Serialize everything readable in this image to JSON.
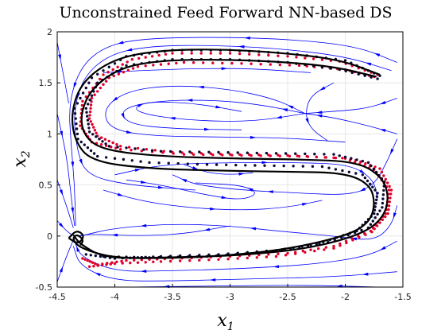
{
  "chart_data": {
    "type": "scatter",
    "title": "Unconstrained Feed Forward NN-based DS",
    "xlabel": {
      "base": "x",
      "sub": "1"
    },
    "ylabel": {
      "base": "x",
      "sub": "2"
    },
    "xlim": [
      -4.5,
      -1.5
    ],
    "ylim": [
      -0.5,
      2.0
    ],
    "xticks": [
      "-4.5",
      "-4",
      "-3.5",
      "-3",
      "-2.5",
      "-2",
      "-1.5"
    ],
    "yticks": [
      "-0.5",
      "0",
      "0.5",
      "1",
      "1.5",
      "2"
    ],
    "grid": true,
    "colors": {
      "streamlines": "#0000ff",
      "demonstrations": "#e0002a",
      "reproductions_dots": "#0a0a33",
      "reproductions_lines": "#000000"
    },
    "series": [
      {
        "style": "demonstration-dots",
        "points": [
          [
            -1.75,
            1.56
          ],
          [
            -2.0,
            1.63
          ],
          [
            -2.4,
            1.67
          ],
          [
            -2.9,
            1.69
          ],
          [
            -3.4,
            1.7
          ],
          [
            -3.8,
            1.66
          ],
          [
            -4.05,
            1.55
          ],
          [
            -4.2,
            1.35
          ],
          [
            -4.22,
            1.15
          ],
          [
            -4.15,
            0.98
          ],
          [
            -3.95,
            0.88
          ],
          [
            -3.5,
            0.82
          ],
          [
            -3.0,
            0.8
          ],
          [
            -2.5,
            0.79
          ],
          [
            -2.0,
            0.76
          ],
          [
            -1.75,
            0.65
          ],
          [
            -1.62,
            0.45
          ],
          [
            -1.65,
            0.22
          ],
          [
            -1.78,
            0.05
          ],
          [
            -2.1,
            -0.1
          ],
          [
            -2.5,
            -0.17
          ],
          [
            -3.0,
            -0.2
          ],
          [
            -3.5,
            -0.22
          ],
          [
            -3.9,
            -0.24
          ],
          [
            -4.15,
            -0.28
          ],
          [
            -4.28,
            -0.22
          ]
        ]
      },
      {
        "style": "demonstration-dots",
        "points": [
          [
            -1.72,
            1.58
          ],
          [
            -2.05,
            1.71
          ],
          [
            -2.5,
            1.76
          ],
          [
            -3.0,
            1.79
          ],
          [
            -3.5,
            1.79
          ],
          [
            -3.85,
            1.73
          ],
          [
            -4.1,
            1.58
          ],
          [
            -4.28,
            1.32
          ],
          [
            -4.3,
            1.08
          ],
          [
            -4.2,
            0.92
          ],
          [
            -3.95,
            0.85
          ],
          [
            -3.4,
            0.8
          ],
          [
            -2.9,
            0.79
          ],
          [
            -2.4,
            0.78
          ],
          [
            -1.95,
            0.76
          ],
          [
            -1.7,
            0.66
          ],
          [
            -1.6,
            0.45
          ],
          [
            -1.63,
            0.22
          ],
          [
            -1.77,
            0.04
          ],
          [
            -2.1,
            -0.12
          ],
          [
            -2.6,
            -0.2
          ],
          [
            -3.1,
            -0.23
          ],
          [
            -3.6,
            -0.25
          ],
          [
            -4.0,
            -0.27
          ],
          [
            -4.22,
            -0.3
          ]
        ]
      },
      {
        "style": "reproduction-dots",
        "points": [
          [
            -1.72,
            1.54
          ],
          [
            -2.05,
            1.63
          ],
          [
            -2.5,
            1.7
          ],
          [
            -3.0,
            1.73
          ],
          [
            -3.5,
            1.73
          ],
          [
            -3.9,
            1.67
          ],
          [
            -4.15,
            1.5
          ],
          [
            -4.25,
            1.25
          ],
          [
            -4.22,
            1.02
          ],
          [
            -4.05,
            0.88
          ],
          [
            -3.6,
            0.83
          ],
          [
            -3.1,
            0.82
          ],
          [
            -2.6,
            0.81
          ],
          [
            -2.1,
            0.8
          ],
          [
            -1.8,
            0.72
          ],
          [
            -1.66,
            0.53
          ],
          [
            -1.68,
            0.28
          ],
          [
            -1.8,
            0.08
          ],
          [
            -2.15,
            -0.06
          ],
          [
            -2.6,
            -0.14
          ],
          [
            -3.1,
            -0.18
          ],
          [
            -3.6,
            -0.2
          ],
          [
            -4.0,
            -0.22
          ],
          [
            -4.25,
            -0.18
          ]
        ]
      },
      {
        "style": "reproduction-dots",
        "points": [
          [
            -1.7,
            1.57
          ],
          [
            -2.0,
            1.72
          ],
          [
            -2.5,
            1.79
          ],
          [
            -3.0,
            1.82
          ],
          [
            -3.5,
            1.82
          ],
          [
            -3.9,
            1.76
          ],
          [
            -4.2,
            1.55
          ],
          [
            -4.35,
            1.25
          ],
          [
            -4.32,
            0.95
          ],
          [
            -4.15,
            0.78
          ],
          [
            -3.7,
            0.72
          ],
          [
            -3.2,
            0.7
          ],
          [
            -2.7,
            0.69
          ],
          [
            -2.2,
            0.68
          ],
          [
            -1.85,
            0.6
          ],
          [
            -1.72,
            0.42
          ],
          [
            -1.75,
            0.22
          ],
          [
            -1.9,
            0.05
          ],
          [
            -2.25,
            -0.08
          ],
          [
            -2.7,
            -0.16
          ],
          [
            -3.2,
            -0.2
          ],
          [
            -3.7,
            -0.21
          ],
          [
            -4.1,
            -0.2
          ]
        ]
      },
      {
        "style": "reproduction-line",
        "points": [
          [
            -1.73,
            1.56
          ],
          [
            -2.1,
            1.66
          ],
          [
            -2.6,
            1.71
          ],
          [
            -3.1,
            1.73
          ],
          [
            -3.6,
            1.72
          ],
          [
            -3.95,
            1.65
          ],
          [
            -4.2,
            1.45
          ],
          [
            -4.3,
            1.2
          ],
          [
            -4.27,
            0.98
          ],
          [
            -4.1,
            0.84
          ],
          [
            -3.6,
            0.78
          ],
          [
            -3.0,
            0.76
          ],
          [
            -2.4,
            0.75
          ],
          [
            -1.9,
            0.73
          ],
          [
            -1.68,
            0.58
          ],
          [
            -1.62,
            0.38
          ],
          [
            -1.67,
            0.18
          ],
          [
            -1.85,
            0.02
          ],
          [
            -2.3,
            -0.12
          ],
          [
            -2.9,
            -0.19
          ],
          [
            -3.5,
            -0.21
          ],
          [
            -4.0,
            -0.22
          ],
          [
            -4.3,
            -0.12
          ],
          [
            -4.37,
            -0.03
          ],
          [
            -4.33,
            0.02
          ],
          [
            -4.27,
            -0.04
          ],
          [
            -4.3,
            -0.09
          ]
        ]
      },
      {
        "style": "reproduction-line",
        "points": [
          [
            -1.7,
            1.58
          ],
          [
            -2.05,
            1.73
          ],
          [
            -2.6,
            1.8
          ],
          [
            -3.1,
            1.83
          ],
          [
            -3.6,
            1.82
          ],
          [
            -4.0,
            1.74
          ],
          [
            -4.28,
            1.52
          ],
          [
            -4.38,
            1.22
          ],
          [
            -4.35,
            0.93
          ],
          [
            -4.2,
            0.73
          ],
          [
            -3.7,
            0.66
          ],
          [
            -3.1,
            0.64
          ],
          [
            -2.5,
            0.63
          ],
          [
            -2.0,
            0.62
          ],
          [
            -1.78,
            0.5
          ],
          [
            -1.74,
            0.3
          ],
          [
            -1.8,
            0.12
          ],
          [
            -2.0,
            0.0
          ],
          [
            -2.5,
            -0.13
          ],
          [
            -3.1,
            -0.2
          ],
          [
            -3.7,
            -0.22
          ],
          [
            -4.1,
            -0.21
          ],
          [
            -4.3,
            -0.08
          ],
          [
            -4.36,
            0.01
          ]
        ]
      },
      {
        "style": "reproduction-line",
        "points": [
          [
            -4.4,
            -0.02
          ],
          [
            -4.33,
            0.06
          ],
          [
            -4.26,
            0.0
          ],
          [
            -4.32,
            -0.08
          ],
          [
            -4.4,
            -0.02
          ]
        ]
      }
    ],
    "streamlines": [
      [
        [
          -1.55,
          1.7
        ],
        [
          -1.9,
          1.86
        ],
        [
          -2.5,
          1.93
        ],
        [
          -3.2,
          1.95
        ],
        [
          -3.8,
          1.93
        ],
        [
          -4.1,
          1.85
        ],
        [
          -4.3,
          1.65
        ],
        [
          -4.4,
          1.3
        ],
        [
          -4.38,
          0.9
        ],
        [
          -4.35,
          0.5
        ],
        [
          -4.34,
          0.1
        ]
      ],
      [
        [
          -1.6,
          1.62
        ],
        [
          -2.0,
          1.76
        ],
        [
          -2.6,
          1.84
        ],
        [
          -3.2,
          1.87
        ],
        [
          -3.7,
          1.86
        ],
        [
          -4.05,
          1.78
        ],
        [
          -4.28,
          1.55
        ],
        [
          -4.36,
          1.2
        ],
        [
          -4.33,
          0.85
        ],
        [
          -4.25,
          0.6
        ],
        [
          -3.9,
          0.5
        ],
        [
          -3.3,
          0.45
        ]
      ],
      [
        [
          -2.35,
          1.2
        ],
        [
          -2.6,
          1.34
        ],
        [
          -3.0,
          1.44
        ],
        [
          -3.5,
          1.48
        ],
        [
          -3.9,
          1.42
        ],
        [
          -4.1,
          1.25
        ],
        [
          -4.05,
          1.05
        ],
        [
          -3.7,
          0.98
        ],
        [
          -3.1,
          0.97
        ],
        [
          -2.5,
          0.96
        ],
        [
          -2.0,
          0.92
        ]
      ],
      [
        [
          -2.35,
          1.2
        ],
        [
          -2.7,
          1.28
        ],
        [
          -3.1,
          1.33
        ],
        [
          -3.6,
          1.33
        ],
        [
          -3.95,
          1.25
        ],
        [
          -3.9,
          1.1
        ],
        [
          -3.5,
          1.05
        ],
        [
          -2.9,
          1.04
        ]
      ],
      [
        [
          -2.35,
          1.2
        ],
        [
          -2.8,
          1.12
        ],
        [
          -3.3,
          1.13
        ],
        [
          -3.7,
          1.18
        ],
        [
          -3.85,
          1.25
        ],
        [
          -3.7,
          1.32
        ],
        [
          -3.3,
          1.3
        ],
        [
          -2.9,
          1.22
        ]
      ],
      [
        [
          -1.55,
          1.35
        ],
        [
          -1.8,
          1.25
        ],
        [
          -2.1,
          1.22
        ],
        [
          -2.35,
          1.2
        ]
      ],
      [
        [
          -1.55,
          1.0
        ],
        [
          -1.8,
          1.08
        ],
        [
          -2.1,
          1.16
        ],
        [
          -2.35,
          1.2
        ]
      ],
      [
        [
          -1.55,
          0.95
        ],
        [
          -1.65,
          0.7
        ],
        [
          -1.75,
          0.5
        ],
        [
          -1.95,
          0.4
        ],
        [
          -2.4,
          0.42
        ],
        [
          -2.9,
          0.45
        ],
        [
          -3.3,
          0.5
        ],
        [
          -3.5,
          0.6
        ]
      ],
      [
        [
          -3.9,
          0.55
        ],
        [
          -3.6,
          0.5
        ],
        [
          -3.2,
          0.4
        ],
        [
          -2.9,
          0.35
        ],
        [
          -2.75,
          0.42
        ],
        [
          -2.9,
          0.5
        ],
        [
          -3.3,
          0.52
        ]
      ],
      [
        [
          -4.1,
          0.45
        ],
        [
          -3.8,
          0.35
        ],
        [
          -3.4,
          0.28
        ],
        [
          -2.9,
          0.25
        ],
        [
          -2.5,
          0.28
        ],
        [
          -2.2,
          0.35
        ]
      ],
      [
        [
          -1.55,
          0.3
        ],
        [
          -1.6,
          0.1
        ],
        [
          -1.75,
          -0.05
        ],
        [
          -2.1,
          0.0
        ],
        [
          -2.6,
          0.05
        ],
        [
          -3.0,
          0.1
        ],
        [
          -3.5,
          0.12
        ],
        [
          -4.0,
          0.08
        ],
        [
          -4.3,
          0.0
        ]
      ],
      [
        [
          -1.55,
          -0.05
        ],
        [
          -1.8,
          -0.2
        ],
        [
          -2.3,
          -0.28
        ],
        [
          -2.9,
          -0.32
        ],
        [
          -3.5,
          -0.34
        ],
        [
          -4.0,
          -0.35
        ],
        [
          -4.3,
          -0.2
        ],
        [
          -4.35,
          -0.05
        ]
      ],
      [
        [
          -1.55,
          -0.35
        ],
        [
          -2.1,
          -0.4
        ],
        [
          -2.8,
          -0.42
        ],
        [
          -3.5,
          -0.44
        ],
        [
          -4.0,
          -0.44
        ],
        [
          -4.3,
          -0.3
        ],
        [
          -4.36,
          -0.1
        ]
      ],
      [
        [
          -1.7,
          -0.5
        ],
        [
          -2.4,
          -0.48
        ],
        [
          -3.2,
          -0.49
        ],
        [
          -3.9,
          -0.5
        ]
      ],
      [
        [
          -3.0,
          0.1
        ],
        [
          -3.4,
          0.02
        ],
        [
          -3.8,
          0.0
        ],
        [
          -4.2,
          0.02
        ],
        [
          -4.33,
          0.0
        ]
      ],
      [
        [
          -4.5,
          1.9
        ],
        [
          -4.45,
          1.6
        ],
        [
          -4.4,
          1.3
        ]
      ],
      [
        [
          -4.5,
          1.2
        ],
        [
          -4.42,
          0.8
        ],
        [
          -4.38,
          0.4
        ],
        [
          -4.35,
          0.1
        ]
      ],
      [
        [
          -4.5,
          0.55
        ],
        [
          -4.42,
          0.3
        ],
        [
          -4.36,
          0.08
        ]
      ],
      [
        [
          -4.5,
          -0.45
        ],
        [
          -4.42,
          -0.2
        ],
        [
          -4.36,
          -0.04
        ]
      ],
      [
        [
          -4.5,
          0.15
        ],
        [
          -4.42,
          0.05
        ],
        [
          -4.37,
          0.01
        ]
      ],
      [
        [
          -4.0,
          0.6
        ],
        [
          -3.6,
          0.7
        ],
        [
          -3.0,
          0.72
        ],
        [
          -2.4,
          0.72
        ],
        [
          -1.95,
          0.7
        ],
        [
          -1.75,
          0.55
        ],
        [
          -1.72,
          0.35
        ]
      ],
      [
        [
          -4.1,
          1.6
        ],
        [
          -3.8,
          1.62
        ],
        [
          -3.3,
          1.64
        ],
        [
          -2.8,
          1.64
        ],
        [
          -2.3,
          1.6
        ]
      ],
      [
        [
          -2.1,
          1.5
        ],
        [
          -2.3,
          1.38
        ],
        [
          -2.35,
          1.2
        ],
        [
          -2.3,
          1.05
        ],
        [
          -2.15,
          0.93
        ]
      ],
      [
        [
          -3.4,
          0.7
        ],
        [
          -3.2,
          0.62
        ],
        [
          -3.0,
          0.6
        ],
        [
          -2.8,
          0.62
        ]
      ]
    ]
  }
}
